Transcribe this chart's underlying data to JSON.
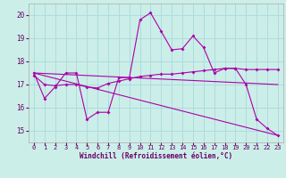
{
  "xlabel": "Windchill (Refroidissement éolien,°C)",
  "background_color": "#cceee8",
  "grid_color": "#aadddd",
  "line_color": "#aa00aa",
  "xlim": [
    -0.5,
    23.5
  ],
  "ylim": [
    14.5,
    20.5
  ],
  "yticks": [
    15,
    16,
    17,
    18,
    19,
    20
  ],
  "xticks": [
    0,
    1,
    2,
    3,
    4,
    5,
    6,
    7,
    8,
    9,
    10,
    11,
    12,
    13,
    14,
    15,
    16,
    17,
    18,
    19,
    20,
    21,
    22,
    23
  ],
  "series": [
    {
      "x": [
        0,
        1,
        2,
        3,
        4,
        5,
        6,
        7,
        8,
        9,
        10,
        11,
        12,
        13,
        14,
        15,
        16,
        17,
        18,
        19,
        20,
        21,
        22,
        23
      ],
      "y": [
        17.5,
        16.4,
        16.9,
        17.5,
        17.5,
        15.5,
        15.8,
        15.8,
        17.3,
        17.3,
        19.8,
        20.1,
        19.3,
        18.5,
        18.55,
        19.1,
        18.6,
        17.5,
        17.7,
        17.7,
        17.0,
        15.5,
        15.1,
        14.8
      ],
      "marker": true
    },
    {
      "x": [
        0,
        1,
        2,
        3,
        4,
        5,
        6,
        7,
        8,
        9,
        10,
        11,
        12,
        13,
        14,
        15,
        16,
        17,
        18,
        19,
        20,
        21,
        22,
        23
      ],
      "y": [
        17.4,
        17.0,
        16.95,
        17.0,
        17.0,
        16.9,
        16.85,
        17.05,
        17.15,
        17.25,
        17.35,
        17.4,
        17.45,
        17.45,
        17.5,
        17.55,
        17.6,
        17.65,
        17.7,
        17.7,
        17.65,
        17.65,
        17.65,
        17.65
      ],
      "marker": true
    },
    {
      "x": [
        0,
        23
      ],
      "y": [
        17.5,
        17.0
      ],
      "marker": false
    },
    {
      "x": [
        0,
        23
      ],
      "y": [
        17.5,
        14.8
      ],
      "marker": false
    }
  ]
}
